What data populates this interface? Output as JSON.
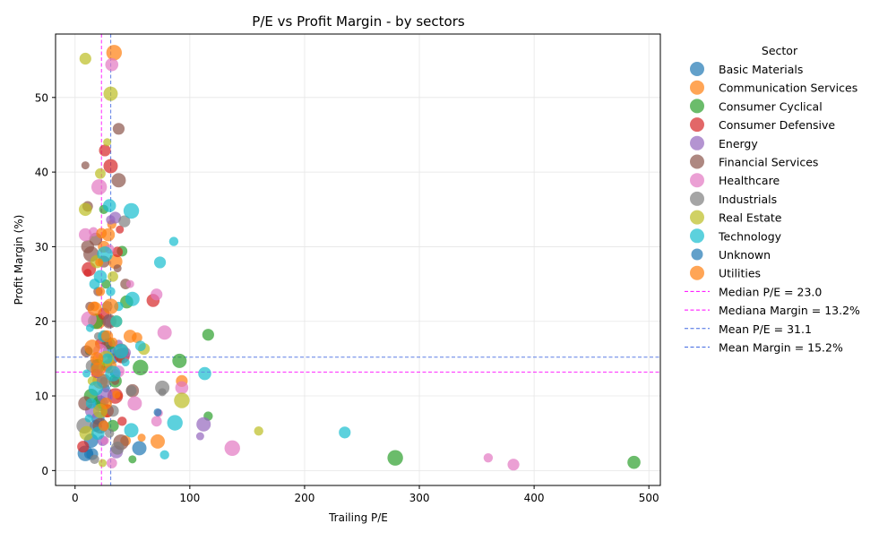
{
  "chart_data": {
    "type": "scatter",
    "title": "P/E vs Profit Margin - by sectors",
    "xlabel": "Trailing P/E",
    "ylabel": "Profit Margin (%)",
    "xlim": [
      -17,
      510
    ],
    "ylim": [
      -2,
      58.5
    ],
    "xticks": [
      0,
      100,
      200,
      300,
      400,
      500
    ],
    "yticks": [
      0,
      10,
      20,
      30,
      40,
      50
    ],
    "grid": true,
    "legend_title": "Sector",
    "legend_position": "right, outside plot",
    "reference_lines": [
      {
        "label": "Median P/E = 23.0",
        "orientation": "vertical",
        "value": 23.0,
        "color": "#ff00ff"
      },
      {
        "label": "Mediana Margin = 13.2%",
        "orientation": "horizontal",
        "value": 13.2,
        "color": "#ff00ff"
      },
      {
        "label": "Mean P/E = 31.1",
        "orientation": "vertical",
        "value": 31.1,
        "color": "#4169e1"
      },
      {
        "label": "Mean Margin = 15.2%",
        "orientation": "horizontal",
        "value": 15.2,
        "color": "#4169e1"
      }
    ],
    "series": [
      {
        "name": "Basic Materials",
        "color": "#1f77b4",
        "size": 10,
        "points": [
          [
            9,
            2.3
          ],
          [
            12,
            2.2
          ],
          [
            15,
            2.2
          ],
          [
            56,
            3
          ],
          [
            25,
            12
          ],
          [
            28,
            14
          ],
          [
            30,
            16
          ],
          [
            22,
            9
          ],
          [
            35,
            13
          ],
          [
            18,
            6
          ],
          [
            14,
            4
          ],
          [
            27,
            11
          ],
          [
            33,
            15
          ],
          [
            20,
            7
          ]
        ]
      },
      {
        "name": "Communication Services",
        "color": "#ff7f0e",
        "size": 10,
        "points": [
          [
            34,
            56
          ],
          [
            32,
            33
          ],
          [
            93,
            12
          ],
          [
            72,
            3.9
          ],
          [
            58,
            4.4
          ],
          [
            54,
            17.8
          ],
          [
            48,
            18
          ],
          [
            20,
            20
          ],
          [
            17,
            22
          ],
          [
            25,
            30
          ],
          [
            35,
            28
          ],
          [
            38,
            10
          ],
          [
            44,
            4
          ],
          [
            28,
            8
          ],
          [
            22,
            12
          ],
          [
            19,
            15
          ],
          [
            26,
            18
          ],
          [
            30,
            14
          ]
        ]
      },
      {
        "name": "Consumer Cyclical",
        "color": "#2ca02c",
        "size": 10,
        "points": [
          [
            487,
            1.1
          ],
          [
            279,
            1.7
          ],
          [
            116,
            7.3
          ],
          [
            116,
            18.2
          ],
          [
            91,
            14.7
          ],
          [
            50,
            1.5
          ],
          [
            41,
            29.4
          ],
          [
            45,
            22.6
          ],
          [
            57,
            13.8
          ],
          [
            25,
            35
          ],
          [
            30,
            17
          ],
          [
            14,
            10
          ],
          [
            12,
            16
          ],
          [
            22,
            9
          ],
          [
            35,
            12
          ],
          [
            18,
            20
          ],
          [
            27,
            25
          ],
          [
            33,
            6
          ],
          [
            20,
            14
          ],
          [
            40,
            15
          ]
        ]
      },
      {
        "name": "Consumer Defensive",
        "color": "#d62728",
        "size": 10,
        "points": [
          [
            26,
            42.9
          ],
          [
            31,
            40.8
          ],
          [
            39,
            32.3
          ],
          [
            37,
            29.3
          ],
          [
            68,
            22.8
          ],
          [
            41,
            15.4
          ],
          [
            41,
            6.6
          ],
          [
            7,
            3.2
          ],
          [
            12,
            27
          ],
          [
            11,
            26.5
          ],
          [
            22,
            17
          ],
          [
            28,
            8
          ],
          [
            35,
            10
          ],
          [
            18,
            13
          ],
          [
            25,
            21
          ]
        ]
      },
      {
        "name": "Energy",
        "color": "#9467bd",
        "size": 10,
        "points": [
          [
            31,
            33.6
          ],
          [
            35,
            33.9
          ],
          [
            112,
            6.2
          ],
          [
            109,
            4.6
          ],
          [
            44,
            15.8
          ],
          [
            36,
            2.5
          ],
          [
            26,
            10
          ],
          [
            20,
            13
          ],
          [
            30,
            20
          ],
          [
            15,
            8
          ],
          [
            38,
            17
          ],
          [
            24,
            4
          ]
        ]
      },
      {
        "name": "Financial Services",
        "color": "#8c564b",
        "size": 10,
        "points": [
          [
            38,
            45.8
          ],
          [
            38,
            38.9
          ],
          [
            9,
            40.9
          ],
          [
            11,
            35.4
          ],
          [
            11,
            30
          ],
          [
            14,
            29
          ],
          [
            13,
            22
          ],
          [
            10,
            16
          ],
          [
            9,
            9
          ],
          [
            37,
            27.1
          ],
          [
            44,
            25
          ],
          [
            50,
            10.7
          ],
          [
            40,
            3.8
          ],
          [
            20,
            24
          ],
          [
            25,
            28
          ],
          [
            30,
            20
          ],
          [
            35,
            12
          ],
          [
            28,
            17
          ],
          [
            18,
            31
          ],
          [
            22,
            6
          ]
        ]
      },
      {
        "name": "Healthcare",
        "color": "#e377c2",
        "size": 10,
        "points": [
          [
            32,
            54.4
          ],
          [
            21,
            38
          ],
          [
            16,
            32
          ],
          [
            71,
            23.6
          ],
          [
            78,
            18.5
          ],
          [
            73,
            7.7
          ],
          [
            71,
            6.6
          ],
          [
            93,
            11.1
          ],
          [
            137,
            3
          ],
          [
            360,
            1.7
          ],
          [
            382,
            0.8
          ],
          [
            52,
            9
          ],
          [
            48,
            25
          ],
          [
            32,
            1
          ],
          [
            9,
            31.6
          ],
          [
            12,
            20.3
          ],
          [
            30,
            29.7
          ],
          [
            38,
            13.3
          ],
          [
            22,
            16
          ],
          [
            26,
            4
          ]
        ]
      },
      {
        "name": "Industrials",
        "color": "#7f7f7f",
        "size": 10,
        "points": [
          [
            43,
            33.4
          ],
          [
            76,
            11.1
          ],
          [
            76,
            10.5
          ],
          [
            49,
            10.7
          ],
          [
            37,
            3
          ],
          [
            8,
            6
          ],
          [
            17,
            1.5
          ],
          [
            33,
            8
          ],
          [
            25,
            12
          ],
          [
            20,
            18
          ],
          [
            28,
            22
          ],
          [
            15,
            14
          ],
          [
            40,
            16
          ],
          [
            30,
            5
          ]
        ]
      },
      {
        "name": "Real Estate",
        "color": "#bcbd22",
        "size": 10,
        "points": [
          [
            9,
            55.2
          ],
          [
            31,
            50.5
          ],
          [
            28,
            44
          ],
          [
            22,
            39.8
          ],
          [
            9,
            35
          ],
          [
            93,
            9.4
          ],
          [
            160,
            5.3
          ],
          [
            60,
            16.3
          ],
          [
            10,
            5
          ],
          [
            24,
            1
          ],
          [
            33,
            26
          ],
          [
            19,
            28
          ],
          [
            27,
            15
          ],
          [
            15,
            12
          ],
          [
            36,
            20
          ],
          [
            22,
            8
          ]
        ]
      },
      {
        "name": "Technology",
        "color": "#17becf",
        "size": 10,
        "points": [
          [
            30,
            35.5
          ],
          [
            49,
            34.8
          ],
          [
            86,
            30.7
          ],
          [
            74,
            27.9
          ],
          [
            50,
            23
          ],
          [
            13,
            19.1
          ],
          [
            57,
            16.7
          ],
          [
            113,
            13
          ],
          [
            87,
            6.4
          ],
          [
            78,
            2.1
          ],
          [
            235,
            5.1
          ],
          [
            49,
            5.4
          ],
          [
            10,
            13
          ],
          [
            17,
            25
          ],
          [
            22,
            26
          ],
          [
            26,
            29
          ],
          [
            31,
            24
          ],
          [
            36,
            20
          ],
          [
            40,
            16
          ],
          [
            44,
            14.5
          ],
          [
            14,
            9
          ],
          [
            20,
            5
          ],
          [
            33,
            13
          ],
          [
            38,
            22
          ],
          [
            25,
            18
          ],
          [
            18,
            11
          ],
          [
            12,
            7
          ],
          [
            28,
            15
          ]
        ]
      },
      {
        "name": "Unknown",
        "color": "#1f77b4",
        "size": 10,
        "points": [
          [
            72,
            7.8
          ]
        ]
      },
      {
        "name": "Utilities",
        "color": "#ff7f0e",
        "size": 10,
        "points": [
          [
            17,
            21.7
          ],
          [
            21,
            27.9
          ],
          [
            23,
            31.8
          ],
          [
            29,
            31.6
          ],
          [
            15,
            16.5
          ],
          [
            33,
            17.2
          ],
          [
            28,
            18
          ],
          [
            20,
            13.5
          ],
          [
            36,
            10.2
          ],
          [
            25,
            6
          ],
          [
            19,
            15
          ],
          [
            31,
            22
          ],
          [
            22,
            24
          ],
          [
            27,
            9
          ]
        ]
      }
    ]
  }
}
